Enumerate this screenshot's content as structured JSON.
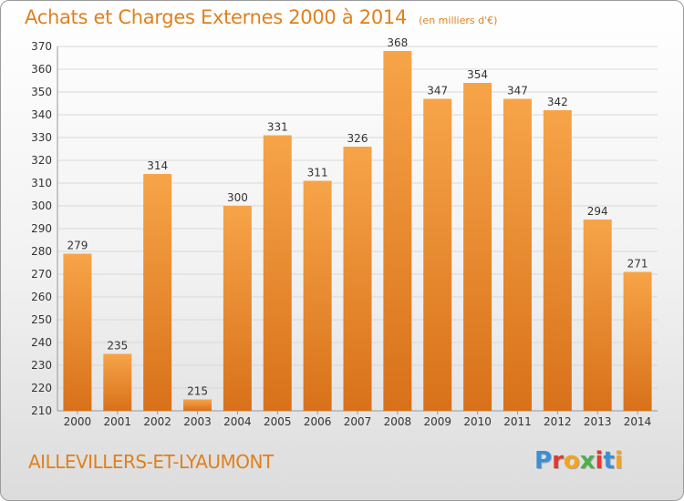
{
  "header": {
    "title": "Achats et Charges Externes 2000 à 2014",
    "subtitle": "(en milliers d'€)"
  },
  "footer": {
    "commune": "AILLEVILLERS-ET-LYAUMONT",
    "logo_letters": [
      "P",
      "r",
      "o",
      "x",
      "i",
      "t",
      "i"
    ],
    "logo_colors": [
      "#3a8fd6",
      "#e23a2e",
      "#f6a21a",
      "#4bb14a",
      "#e23a2e",
      "#3a8fd6",
      "#f6a21a"
    ]
  },
  "colors": {
    "bar_top": "#f7a448",
    "bar_bottom": "#d8711a",
    "title": "#e0801e",
    "grid": "#d8d8d8"
  },
  "chart_data": {
    "type": "bar",
    "title": "Achats et Charges Externes 2000 à 2014",
    "subtitle": "(en milliers d'€)",
    "xlabel": "",
    "ylabel": "",
    "categories": [
      "2000",
      "2001",
      "2002",
      "2003",
      "2004",
      "2005",
      "2006",
      "2007",
      "2008",
      "2009",
      "2010",
      "2011",
      "2012",
      "2013",
      "2014"
    ],
    "values": [
      279,
      235,
      314,
      215,
      300,
      331,
      311,
      326,
      368,
      347,
      354,
      347,
      342,
      294,
      271
    ],
    "ylim": [
      210,
      370
    ],
    "yticks": [
      210,
      220,
      230,
      240,
      250,
      260,
      270,
      280,
      290,
      300,
      310,
      320,
      330,
      340,
      350,
      360,
      370
    ],
    "grid": true
  }
}
